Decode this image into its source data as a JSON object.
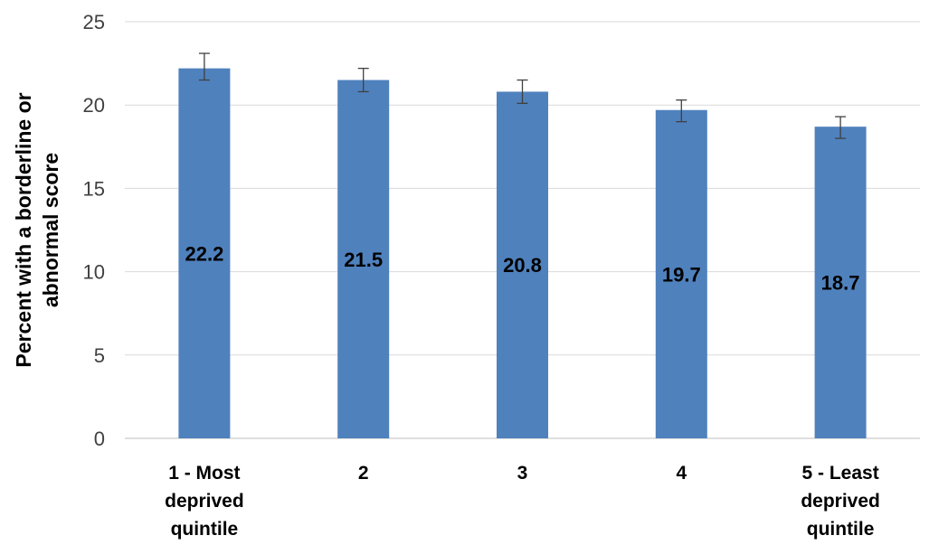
{
  "chart_data": {
    "type": "bar",
    "title": "",
    "xlabel": "",
    "ylabel": [
      "Percent with a borderline or",
      "abnormal  score"
    ],
    "ylim": [
      0,
      25
    ],
    "yticks": [
      0,
      5,
      10,
      15,
      20,
      25
    ],
    "grid": true,
    "categories": [
      [
        "1 - Most",
        "deprived",
        "quintile"
      ],
      [
        "2"
      ],
      [
        "3"
      ],
      [
        "4"
      ],
      [
        "5 - Least",
        "deprived",
        "quintile"
      ]
    ],
    "series": [
      {
        "values": [
          22.2,
          21.5,
          20.8,
          19.7,
          18.7
        ],
        "error_low": [
          21.5,
          20.8,
          20.1,
          19.0,
          18.0
        ],
        "error_high": [
          23.1,
          22.2,
          21.5,
          20.3,
          19.3
        ],
        "color": "#4f81bd"
      }
    ],
    "data_labels": [
      "22.2",
      "21.5",
      "20.8",
      "19.7",
      "18.7"
    ]
  }
}
